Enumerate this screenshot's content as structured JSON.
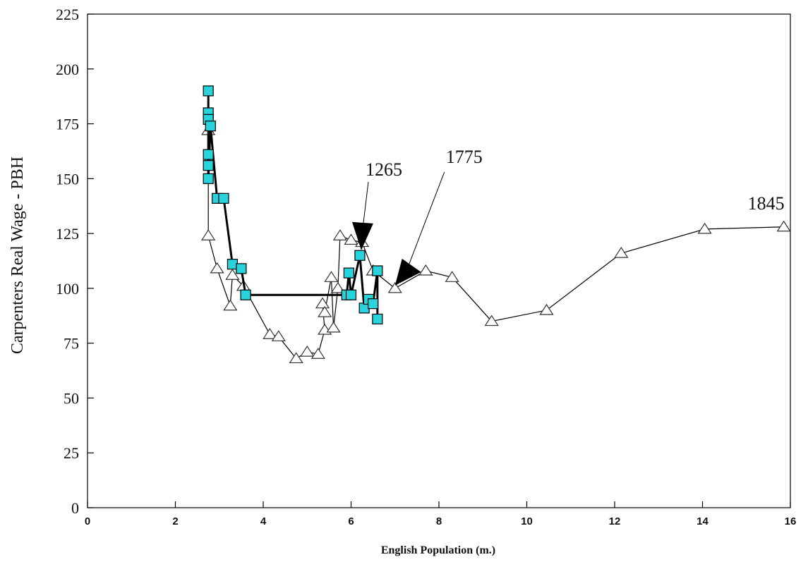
{
  "chart_data": {
    "type": "line",
    "title": "",
    "xlabel": "English Population (m.)",
    "ylabel": "Carpenters Real Wage - PBH",
    "xlim": [
      0,
      16
    ],
    "ylim": [
      0,
      225
    ],
    "x_ticks": [
      0,
      2,
      4,
      6,
      8,
      10,
      12,
      14,
      16
    ],
    "y_ticks": [
      0,
      25,
      50,
      75,
      100,
      125,
      150,
      175,
      200,
      225
    ],
    "grid": false,
    "legend": "none",
    "series": [
      {
        "marker": "triangle",
        "color": "#000000",
        "points": [
          [
            2.75,
            172
          ],
          [
            2.75,
            124
          ],
          [
            2.95,
            109
          ],
          [
            3.25,
            92
          ],
          [
            3.3,
            106
          ],
          [
            3.55,
            101
          ],
          [
            4.15,
            79
          ],
          [
            4.35,
            78
          ],
          [
            4.75,
            68
          ],
          [
            5.0,
            71
          ],
          [
            5.25,
            70
          ],
          [
            5.4,
            81
          ],
          [
            5.35,
            93
          ],
          [
            5.4,
            89
          ],
          [
            5.55,
            105
          ],
          [
            5.6,
            82
          ],
          [
            5.7,
            100
          ],
          [
            5.75,
            124
          ],
          [
            6.0,
            122
          ],
          [
            6.25,
            121
          ],
          [
            6.5,
            108
          ],
          [
            7.0,
            100
          ],
          [
            7.7,
            108
          ],
          [
            8.3,
            105
          ],
          [
            9.2,
            85
          ],
          [
            10.45,
            90
          ],
          [
            12.15,
            116
          ],
          [
            14.05,
            127
          ],
          [
            15.85,
            128
          ]
        ]
      },
      {
        "marker": "square",
        "color": "#29d3dc",
        "points": [
          [
            2.75,
            190
          ],
          [
            2.75,
            180
          ],
          [
            2.75,
            177
          ],
          [
            2.75,
            161
          ],
          [
            2.75,
            156
          ],
          [
            2.75,
            150
          ],
          [
            2.8,
            174
          ],
          [
            2.95,
            141
          ],
          [
            3.1,
            141
          ],
          [
            3.3,
            111
          ],
          [
            3.5,
            109
          ],
          [
            3.6,
            97
          ],
          [
            5.9,
            97
          ],
          [
            5.95,
            107
          ],
          [
            6.0,
            97
          ],
          [
            6.2,
            115
          ],
          [
            6.3,
            91
          ],
          [
            6.4,
            95
          ],
          [
            6.5,
            93
          ],
          [
            6.6,
            108
          ],
          [
            6.6,
            86
          ]
        ]
      }
    ],
    "annotations": [
      {
        "text": "1265",
        "x": 6.2,
        "y": 118
      },
      {
        "text": "1775",
        "x": 7.0,
        "y": 100
      },
      {
        "text": "1845",
        "x": 15.85,
        "y": 128
      }
    ]
  }
}
